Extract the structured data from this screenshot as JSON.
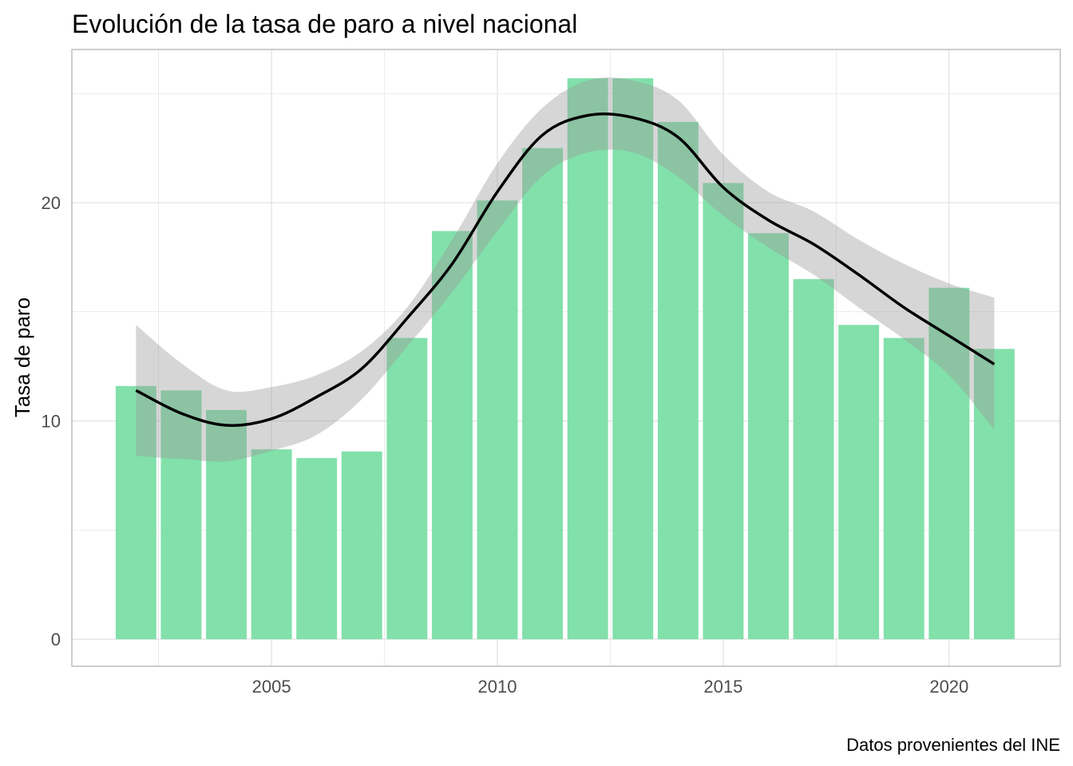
{
  "chart_data": {
    "type": "bar",
    "title": "Evolución de la tasa de paro a nivel nacional",
    "xlabel": "",
    "ylabel": "Tasa de paro",
    "caption": "Datos provenientes del INE",
    "x": [
      2002,
      2003,
      2004,
      2005,
      2006,
      2007,
      2008,
      2009,
      2010,
      2011,
      2012,
      2013,
      2014,
      2015,
      2016,
      2017,
      2018,
      2019,
      2020,
      2021
    ],
    "values": [
      11.6,
      11.4,
      10.5,
      8.7,
      8.3,
      8.6,
      13.8,
      18.7,
      20.1,
      22.5,
      25.7,
      25.7,
      23.7,
      20.9,
      18.6,
      16.5,
      14.4,
      13.8,
      16.1,
      13.3
    ],
    "smooth": {
      "fit": [
        11.4,
        10.35,
        9.8,
        10.1,
        11.1,
        12.4,
        14.7,
        17.2,
        20.5,
        23.1,
        24.0,
        23.9,
        23.0,
        20.7,
        19.2,
        18.1,
        16.7,
        15.2,
        13.9,
        12.6
      ],
      "upper": [
        14.4,
        12.65,
        11.4,
        11.55,
        12.1,
        13.2,
        15.2,
        18.3,
        21.8,
        24.35,
        25.6,
        25.6,
        24.7,
        22.2,
        20.5,
        19.6,
        18.3,
        17.2,
        16.3,
        15.65
      ],
      "lower": [
        8.4,
        8.26,
        8.15,
        8.63,
        9.36,
        11.0,
        13.4,
        15.9,
        18.7,
        21.24,
        22.3,
        22.3,
        21.2,
        19.4,
        17.95,
        16.7,
        15.2,
        13.75,
        12.1,
        9.6
      ]
    },
    "xlim": [
      2000.58,
      2022.46
    ],
    "ylim": [
      -1.24,
      27.02
    ],
    "x_ticks": [
      2005,
      2010,
      2015,
      2020
    ],
    "x_tick_labels": [
      "2005",
      "2010",
      "2015",
      "2020"
    ],
    "y_ticks": [
      0,
      10,
      20
    ],
    "y_tick_labels": [
      "0",
      "10",
      "20"
    ],
    "grid": true,
    "bar_color": "#82e0aa",
    "band_color": "#999999",
    "line_color": "#000000"
  }
}
